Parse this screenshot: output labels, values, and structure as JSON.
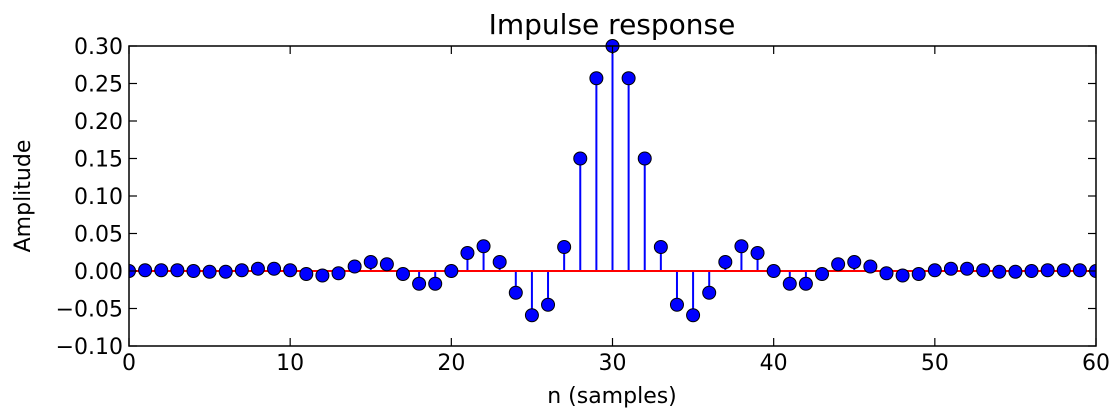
{
  "chart_data": {
    "type": "stem",
    "title": "Impulse response",
    "xlabel": "n (samples)",
    "ylabel": "Amplitude",
    "xlim": [
      0,
      60
    ],
    "ylim": [
      -0.1,
      0.3
    ],
    "xticks": [
      "0",
      "10",
      "20",
      "30",
      "40",
      "50",
      "60"
    ],
    "yticks": [
      "−0.10",
      "−0.05",
      "0.00",
      "0.05",
      "0.10",
      "0.15",
      "0.20",
      "0.25",
      "0.30"
    ],
    "grid": false,
    "colors": {
      "stem": "#0000ff",
      "marker": "#0000ff",
      "baseline": "#ff0000"
    },
    "x": [
      0,
      1,
      2,
      3,
      4,
      5,
      6,
      7,
      8,
      9,
      10,
      11,
      12,
      13,
      14,
      15,
      16,
      17,
      18,
      19,
      20,
      21,
      22,
      23,
      24,
      25,
      26,
      27,
      28,
      29,
      30,
      31,
      32,
      33,
      34,
      35,
      36,
      37,
      38,
      39,
      40,
      41,
      42,
      43,
      44,
      45,
      46,
      47,
      48,
      49,
      50,
      51,
      52,
      53,
      54,
      55,
      56,
      57,
      58,
      59,
      60
    ],
    "values": [
      0.0,
      0.001,
      0.001,
      0.001,
      0.0,
      -0.001,
      -0.001,
      0.001,
      0.003,
      0.003,
      0.001,
      -0.004,
      -0.006,
      -0.003,
      0.006,
      0.012,
      0.009,
      -0.004,
      -0.017,
      -0.017,
      0.0,
      0.024,
      0.033,
      0.012,
      -0.029,
      -0.059,
      -0.045,
      0.032,
      0.15,
      0.257,
      0.3,
      0.257,
      0.15,
      0.032,
      -0.045,
      -0.059,
      -0.029,
      0.012,
      0.033,
      0.024,
      0.0,
      -0.017,
      -0.017,
      -0.004,
      0.009,
      0.012,
      0.006,
      -0.003,
      -0.006,
      -0.004,
      0.001,
      0.003,
      0.003,
      0.001,
      -0.001,
      -0.001,
      0.0,
      0.001,
      0.001,
      0.001,
      0.0
    ]
  }
}
